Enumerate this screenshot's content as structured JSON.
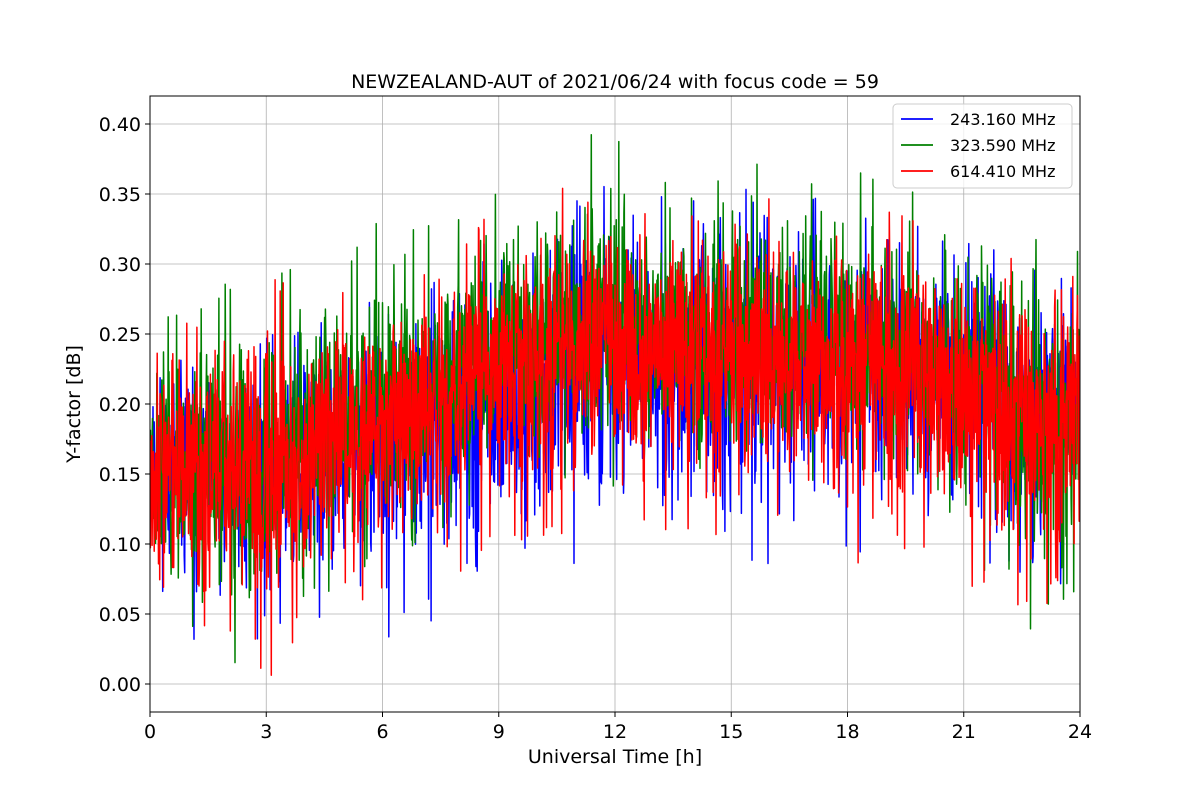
{
  "chart_data": {
    "type": "line",
    "title": "NEWZEALAND-AUT of 2021/06/24 with focus code = 59",
    "xlabel": "Universal Time [h]",
    "ylabel": "Y-factor [dB]",
    "xlim": [
      0,
      24
    ],
    "ylim": [
      -0.02,
      0.42
    ],
    "xticks": [
      0,
      3,
      6,
      9,
      12,
      15,
      18,
      21,
      24
    ],
    "xtick_labels": [
      "0",
      "3",
      "6",
      "9",
      "12",
      "15",
      "18",
      "21",
      "24"
    ],
    "yticks": [
      0.0,
      0.05,
      0.1,
      0.15,
      0.2,
      0.25,
      0.3,
      0.35,
      0.4
    ],
    "ytick_labels": [
      "0.00",
      "0.05",
      "0.10",
      "0.15",
      "0.20",
      "0.25",
      "0.30",
      "0.35",
      "0.40"
    ],
    "grid": true,
    "legend_position": "top-right",
    "x": [
      0,
      1,
      2,
      3,
      4,
      5,
      6,
      7,
      8,
      9,
      10,
      11,
      12,
      13,
      14,
      15,
      16,
      17,
      18,
      19,
      20,
      21,
      22,
      23,
      24
    ],
    "series": [
      {
        "name": "243.160 MHz",
        "color": "#0000ff",
        "mean": [
          0.165,
          0.16,
          0.155,
          0.155,
          0.16,
          0.17,
          0.18,
          0.19,
          0.2,
          0.21,
          0.22,
          0.23,
          0.235,
          0.235,
          0.235,
          0.235,
          0.235,
          0.235,
          0.23,
          0.23,
          0.225,
          0.22,
          0.215,
          0.205,
          0.2
        ],
        "min": [
          0.07,
          0.03,
          0.03,
          0.03,
          0.04,
          0.05,
          0.03,
          0.03,
          0.06,
          0.07,
          0.08,
          0.08,
          0.09,
          0.1,
          0.1,
          0.09,
          0.08,
          0.11,
          0.09,
          0.1,
          0.08,
          0.08,
          0.08,
          0.07,
          0.07
        ],
        "max": [
          0.25,
          0.24,
          0.24,
          0.25,
          0.26,
          0.27,
          0.28,
          0.29,
          0.31,
          0.33,
          0.34,
          0.35,
          0.36,
          0.35,
          0.35,
          0.37,
          0.35,
          0.35,
          0.34,
          0.33,
          0.33,
          0.32,
          0.32,
          0.3,
          0.3
        ]
      },
      {
        "name": "323.590 MHz",
        "color": "#008000",
        "mean": [
          0.16,
          0.155,
          0.15,
          0.155,
          0.17,
          0.18,
          0.195,
          0.21,
          0.225,
          0.235,
          0.245,
          0.25,
          0.25,
          0.25,
          0.25,
          0.245,
          0.245,
          0.24,
          0.24,
          0.235,
          0.23,
          0.22,
          0.21,
          0.2,
          0.195
        ],
        "min": [
          0.04,
          0.04,
          0.0,
          0.04,
          0.06,
          0.07,
          0.08,
          0.1,
          0.12,
          0.13,
          0.14,
          0.15,
          0.14,
          0.14,
          0.14,
          0.15,
          0.15,
          0.14,
          0.13,
          0.14,
          0.13,
          0.11,
          0.04,
          0.03,
          0.07
        ],
        "max": [
          0.27,
          0.27,
          0.29,
          0.29,
          0.3,
          0.31,
          0.34,
          0.33,
          0.34,
          0.36,
          0.38,
          0.39,
          0.4,
          0.37,
          0.36,
          0.37,
          0.38,
          0.37,
          0.37,
          0.36,
          0.35,
          0.33,
          0.33,
          0.32,
          0.31
        ]
      },
      {
        "name": "614.410 MHz",
        "color": "#ff0000",
        "mean": [
          0.165,
          0.16,
          0.15,
          0.155,
          0.165,
          0.18,
          0.19,
          0.2,
          0.215,
          0.225,
          0.235,
          0.24,
          0.24,
          0.24,
          0.24,
          0.235,
          0.235,
          0.235,
          0.23,
          0.23,
          0.225,
          0.215,
          0.205,
          0.2,
          0.2
        ],
        "min": [
          0.05,
          0.0,
          0.04,
          0.0,
          0.04,
          0.05,
          0.06,
          0.08,
          0.08,
          0.1,
          0.1,
          0.11,
          0.1,
          0.11,
          0.1,
          0.11,
          0.12,
          0.11,
          0.08,
          0.1,
          0.09,
          0.07,
          0.06,
          0.05,
          0.04
        ],
        "max": [
          0.27,
          0.26,
          0.26,
          0.3,
          0.27,
          0.28,
          0.29,
          0.3,
          0.32,
          0.34,
          0.35,
          0.36,
          0.36,
          0.34,
          0.36,
          0.35,
          0.35,
          0.34,
          0.35,
          0.34,
          0.33,
          0.32,
          0.31,
          0.31,
          0.33
        ]
      }
    ]
  }
}
